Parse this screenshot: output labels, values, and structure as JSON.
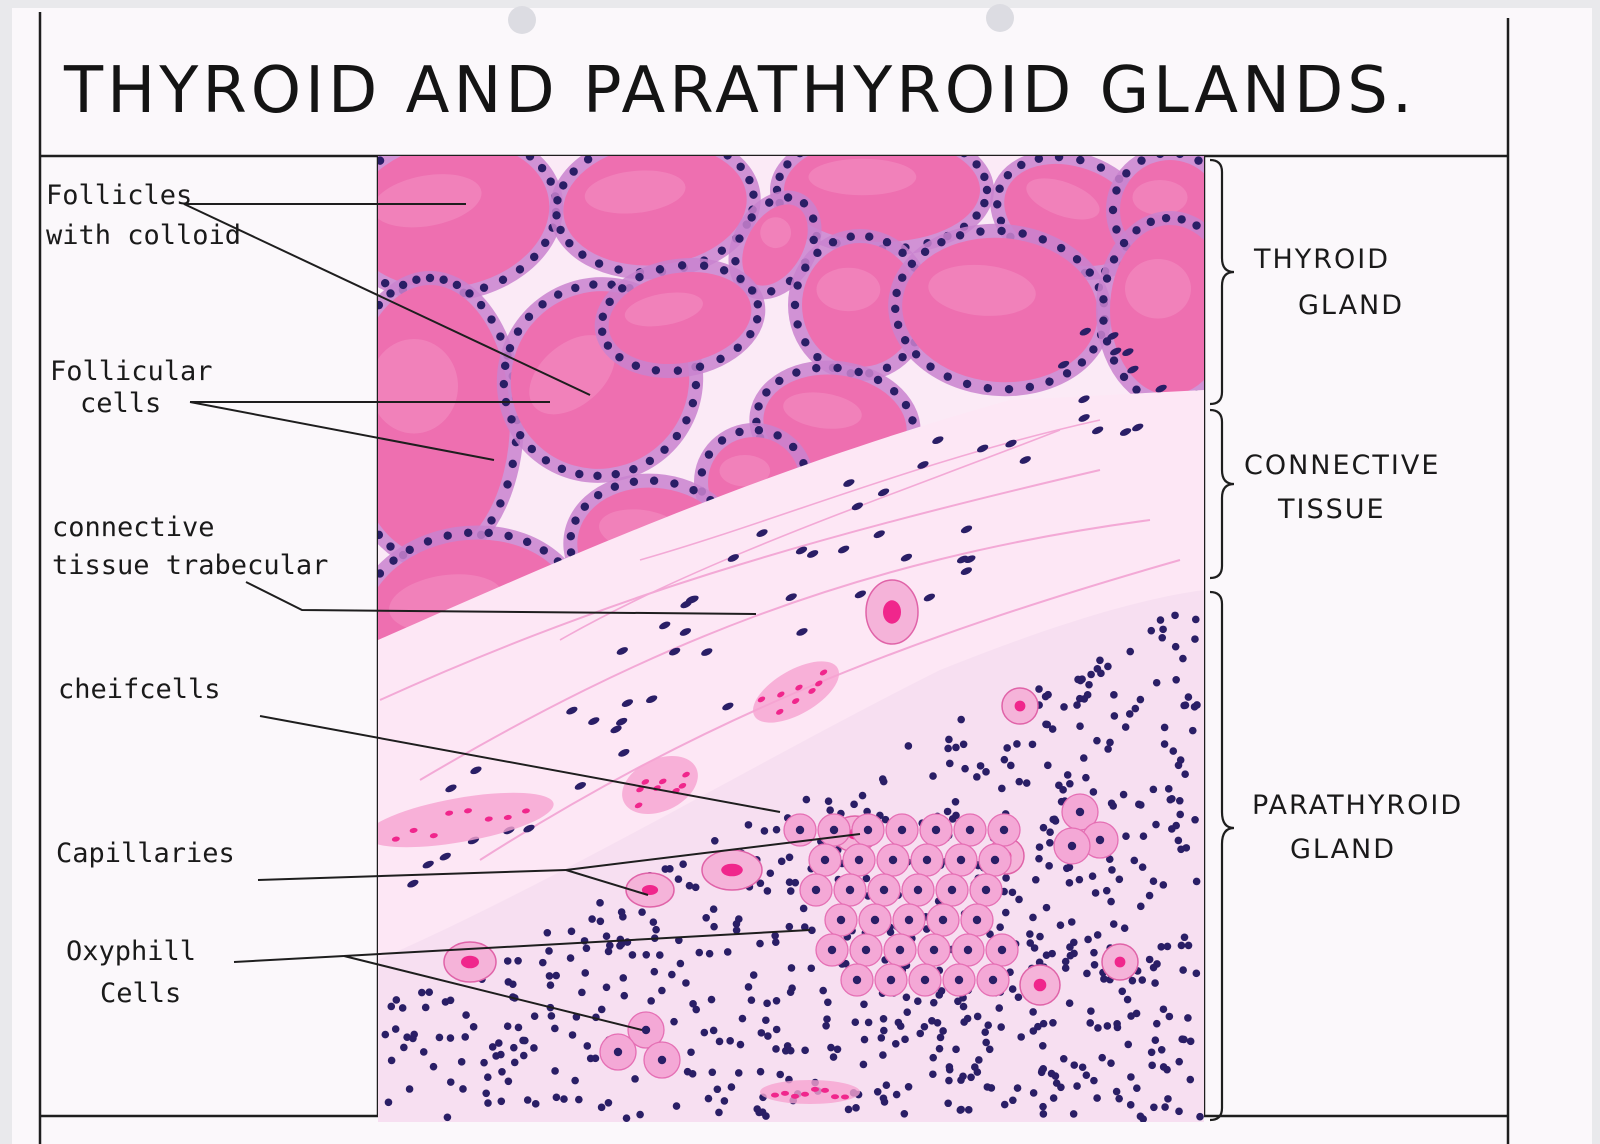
{
  "title": "THYROID AND PARATHYROID GLANDS.",
  "labels_left": [
    {
      "id": "follicles",
      "lines": [
        "Follicles",
        "with colloid"
      ]
    },
    {
      "id": "follicular-cells",
      "lines": [
        "Follicular",
        "cells"
      ]
    },
    {
      "id": "ct-trabecular",
      "lines": [
        "connective",
        "tissue trabecular"
      ]
    },
    {
      "id": "chief-cells",
      "lines": [
        "cheifcells"
      ]
    },
    {
      "id": "capillaries",
      "lines": [
        "Capillaries"
      ]
    },
    {
      "id": "oxyphil-cells",
      "lines": [
        "Oxyphill",
        "Cells"
      ]
    }
  ],
  "labels_right": [
    {
      "id": "thyroid",
      "lines": [
        "THYROID",
        "GLAND"
      ]
    },
    {
      "id": "connective",
      "lines": [
        "CONNECTIVE",
        "TISSUE"
      ]
    },
    {
      "id": "parathyroid",
      "lines": [
        "PARATHYROID",
        "GLAND"
      ]
    }
  ],
  "colors": {
    "paper": "#fbf8fb",
    "border": "#1e1e1e",
    "colloid": "#ee6fb0",
    "epithelium": "#c983cf",
    "nucleus": "#2a1e66",
    "connective_bg": "#fdf0f8",
    "parathyroid_bg": "#f7dff1",
    "rbc": "#f0268c",
    "stain_edge": "#f47fc2"
  }
}
